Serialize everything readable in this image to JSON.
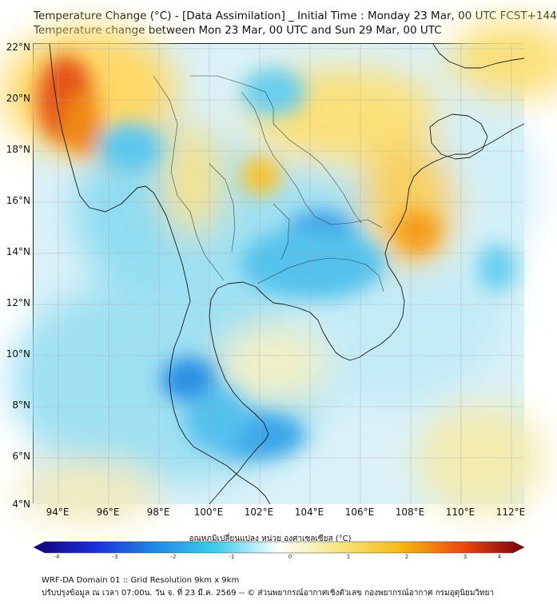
{
  "title_line1": "Temperature Change (°C) - [Data Assimilation] _ Initial Time : Monday 23 Mar, 00 UTC FCST+144",
  "title_line2": "Temperature change between Mon 23 Mar, 00 UTC and Sun 29 Mar, 00 UTC",
  "map": {
    "lat_labels": [
      "22°N",
      "20°N",
      "18°N",
      "16°N",
      "14°N",
      "12°N",
      "10°N",
      "8°N",
      "6°N",
      "4°N"
    ],
    "lon_labels": [
      "94°E",
      "96°E",
      "98°E",
      "100°E",
      "102°E",
      "104°E",
      "106°E",
      "108°E",
      "110°E",
      "112°E"
    ],
    "lat_range": [
      4,
      22
    ],
    "lon_range": [
      93,
      112.5
    ],
    "grid": true,
    "field_features": [
      {
        "kind": "warm",
        "region": "western Myanmar coast",
        "lon": 94,
        "lat": 19.5,
        "value": 2.5
      },
      {
        "kind": "warm",
        "region": "northern Thailand / Laos",
        "lon": 101.5,
        "lat": 19,
        "value": 1
      },
      {
        "kind": "warm",
        "region": "central Vietnam",
        "lon": 108,
        "lat": 14.5,
        "value": 2
      },
      {
        "kind": "cold",
        "region": "northern Cambodia",
        "lon": 104.5,
        "lat": 14.5,
        "value": -2
      },
      {
        "kind": "cold",
        "region": "Andaman Sea",
        "lon": 99,
        "lat": 9,
        "value": -2
      },
      {
        "kind": "cold",
        "region": "southern Thailand / Malay peninsula",
        "lon": 102,
        "lat": 6.5,
        "value": -2
      }
    ]
  },
  "colorbar": {
    "title": "อุณหภูมิเปลี่ยนแปลง หน่วย องศาเซลเซียส (°C)",
    "ticks": [
      "-4",
      "-3",
      "-2",
      "-1",
      "0",
      "1",
      "2",
      "3",
      "4"
    ],
    "range": [
      -4,
      4
    ],
    "colors": [
      "#14007a",
      "#1b2fd6",
      "#1f8be8",
      "#3fd0f0",
      "#ffffff",
      "#f5e680",
      "#f7b814",
      "#ea4a0a",
      "#7a0010"
    ]
  },
  "footer_line1": "WRF-DA Domain 01 :: Grid Resolution 9km x 9km",
  "footer_line2": "ปรับปรุงข้อมูล ณ เวลา 07:00น. วัน จ. ที่ 23 มี.ค. 2569 -- © ส่วนพยากรณ์อากาศเชิงตัวเลข กองพยากรณ์อากาศ กรมอุตุนิยมวิทยา"
}
